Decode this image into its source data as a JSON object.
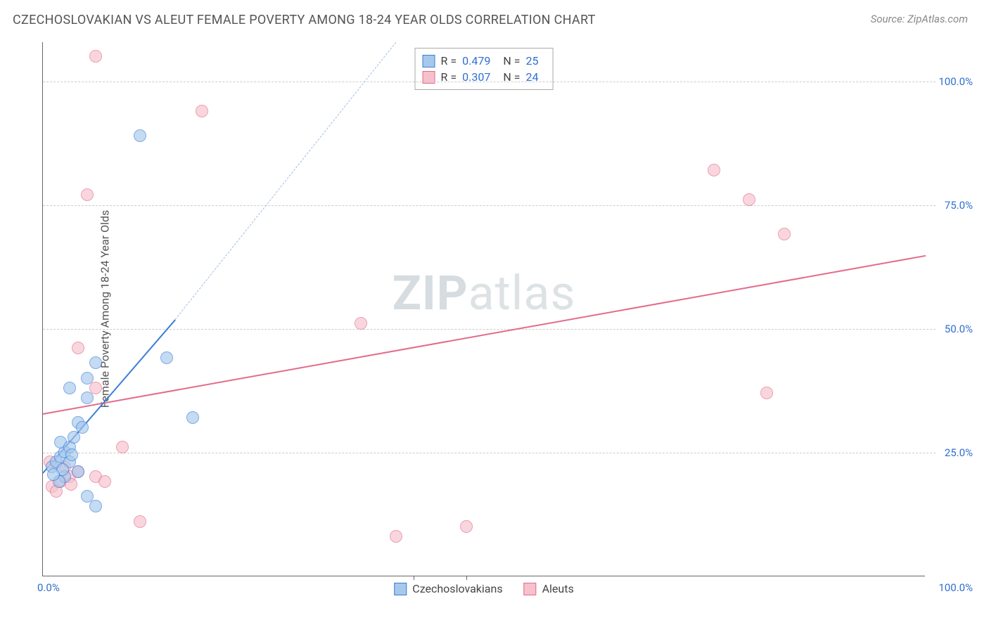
{
  "header": {
    "title": "CZECHOSLOVAKIAN VS ALEUT FEMALE POVERTY AMONG 18-24 YEAR OLDS CORRELATION CHART",
    "source": "Source: ZipAtlas.com"
  },
  "chart": {
    "type": "scatter",
    "ylabel": "Female Poverty Among 18-24 Year Olds",
    "xlim": [
      0,
      100
    ],
    "ylim": [
      0,
      108
    ],
    "ytick_step": 25,
    "ytick_labels": [
      "25.0%",
      "50.0%",
      "75.0%",
      "100.0%"
    ],
    "xtick_labels": {
      "left": "0.0%",
      "right": "100.0%"
    },
    "xtick_positions": [
      42,
      48
    ],
    "background_color": "#ffffff",
    "grid_color": "#cccccc",
    "axis_color": "#666666",
    "label_color": "#2f6fd0",
    "marker_radius": 9,
    "marker_opacity": 0.65,
    "watermark": {
      "prefix": "ZIP",
      "suffix": "atlas"
    }
  },
  "series": {
    "czech": {
      "label": "Czechoslovakians",
      "fill": "#a6c8ec",
      "stroke": "#3b7dd8",
      "r_value": "0.479",
      "n_value": "25",
      "trend": {
        "x1": 0,
        "y1": 21,
        "x2": 15,
        "y2": 52,
        "dash_to_x": 40,
        "dash_to_y": 108
      },
      "points": [
        [
          1,
          22
        ],
        [
          1.5,
          23
        ],
        [
          2,
          24
        ],
        [
          2.5,
          25
        ],
        [
          2,
          27
        ],
        [
          3,
          26
        ],
        [
          3.5,
          28
        ],
        [
          3,
          23
        ],
        [
          4,
          31
        ],
        [
          4.5,
          30
        ],
        [
          5,
          16
        ],
        [
          6,
          14
        ],
        [
          4,
          21
        ],
        [
          2.5,
          20
        ],
        [
          3,
          38
        ],
        [
          5,
          40
        ],
        [
          6,
          43
        ],
        [
          5,
          36
        ],
        [
          11,
          89
        ],
        [
          14,
          44
        ],
        [
          17,
          32
        ],
        [
          1.8,
          19
        ],
        [
          2.2,
          21.5
        ],
        [
          3.3,
          24.5
        ],
        [
          1.2,
          20.5
        ]
      ]
    },
    "aleut": {
      "label": "Aleuts",
      "fill": "#f6c1cd",
      "stroke": "#e36b8a",
      "r_value": "0.307",
      "n_value": "24",
      "trend": {
        "x1": 0,
        "y1": 33,
        "x2": 100,
        "y2": 65
      },
      "points": [
        [
          1,
          18
        ],
        [
          2,
          19
        ],
        [
          3,
          20
        ],
        [
          4,
          21
        ],
        [
          6,
          20
        ],
        [
          7,
          19
        ],
        [
          9,
          26
        ],
        [
          4,
          46
        ],
        [
          6,
          38
        ],
        [
          11,
          11
        ],
        [
          5,
          77
        ],
        [
          6,
          105
        ],
        [
          18,
          94
        ],
        [
          40,
          8
        ],
        [
          48,
          10
        ],
        [
          36,
          51
        ],
        [
          76,
          82
        ],
        [
          80,
          76
        ],
        [
          84,
          69
        ],
        [
          82,
          37
        ],
        [
          1.5,
          17
        ],
        [
          2.5,
          22
        ],
        [
          0.8,
          23
        ],
        [
          3.2,
          18.5
        ]
      ]
    }
  },
  "stats_labels": {
    "r": "R =",
    "n": "N ="
  }
}
